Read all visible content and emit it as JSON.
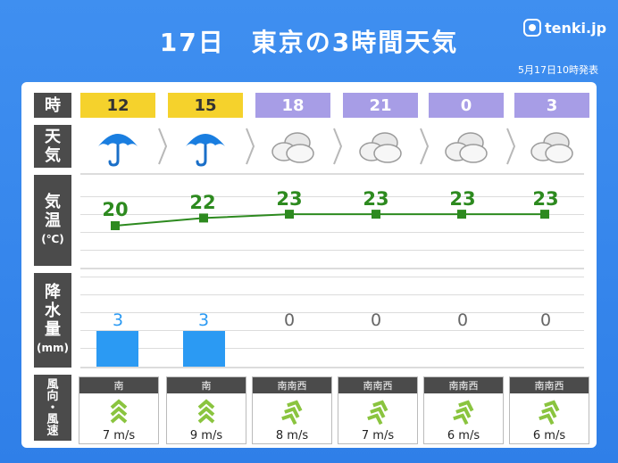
{
  "header": {
    "title": "17日　東京の3時間天気",
    "brand": "tenki.jp",
    "issued": "5月17日10時発表"
  },
  "labels": {
    "time": "時",
    "weather": [
      "天",
      "気"
    ],
    "temp": [
      "気",
      "温"
    ],
    "temp_unit": "(℃)",
    "precip": [
      "降",
      "水",
      "量"
    ],
    "precip_unit": "(mm)",
    "wind": [
      "風",
      "向",
      "・",
      "風",
      "速"
    ]
  },
  "columns": [
    {
      "hour": "12",
      "slot_color": "yellow",
      "weather_icon": "umbrella-icon",
      "temp": "20",
      "precip": "3",
      "wind_dir": "南",
      "wind_speed": "7 m/s"
    },
    {
      "hour": "15",
      "slot_color": "yellow",
      "weather_icon": "umbrella-icon",
      "temp": "22",
      "precip": "3",
      "wind_dir": "南",
      "wind_speed": "9 m/s"
    },
    {
      "hour": "18",
      "slot_color": "purple",
      "weather_icon": "cloud-icon",
      "temp": "23",
      "precip": "0",
      "wind_dir": "南南西",
      "wind_speed": "8 m/s"
    },
    {
      "hour": "21",
      "slot_color": "purple",
      "weather_icon": "cloud-icon",
      "temp": "23",
      "precip": "0",
      "wind_dir": "南南西",
      "wind_speed": "7 m/s"
    },
    {
      "hour": "0",
      "slot_color": "purple",
      "weather_icon": "cloud-icon",
      "temp": "23",
      "precip": "0",
      "wind_dir": "南南西",
      "wind_speed": "6 m/s"
    },
    {
      "hour": "3",
      "slot_color": "purple",
      "weather_icon": "cloud-icon",
      "temp": "23",
      "precip": "0",
      "wind_dir": "南南西",
      "wind_speed": "6 m/s"
    }
  ],
  "chart_data": {
    "type": "line",
    "categories": [
      "12",
      "15",
      "18",
      "21",
      "0",
      "3"
    ],
    "series": [
      {
        "values": [
          20,
          22,
          23,
          23,
          23,
          23
        ]
      }
    ],
    "precip": [
      3,
      3,
      0,
      0,
      0,
      0
    ],
    "colors": {
      "temp_line": "#2d8a1f",
      "precip_bar": "#2b9af3",
      "day": "#f5d22c",
      "night": "#a79de6"
    }
  }
}
